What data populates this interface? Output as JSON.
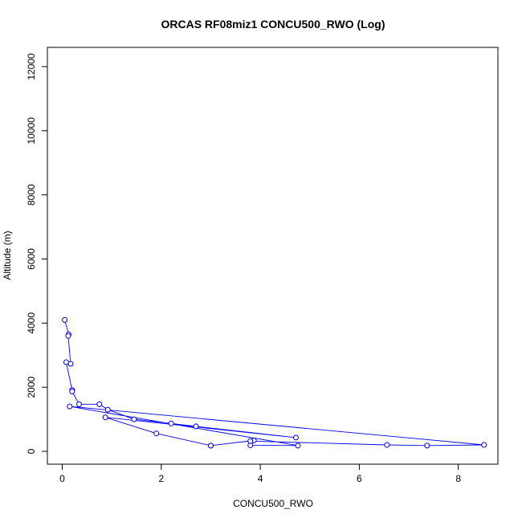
{
  "chart_data": {
    "type": "line",
    "title": "ORCAS RF08miz1 CONCU500_RWO (Log)",
    "xlabel": "CONCU500_RWO",
    "ylabel": "Altitude (m)",
    "xlim": [
      -0.3,
      8.8
    ],
    "ylim": [
      -400,
      12600
    ],
    "xticks": [
      0,
      2,
      4,
      6,
      8
    ],
    "yticks": [
      0,
      2000,
      4000,
      6000,
      8000,
      10000,
      12000
    ],
    "grid": false,
    "legend": "none",
    "color": "#0000ff",
    "series": [
      {
        "x": [
          0.05,
          0.13,
          0.12,
          0.17,
          0.08,
          0.2,
          0.2,
          0.34,
          0.75,
          0.92,
          1.45,
          2.2,
          2.7,
          4.72,
          0.87,
          1.9,
          3.0,
          3.0,
          3.87,
          3.8,
          4.76,
          0.15,
          8.52,
          7.37,
          6.56,
          3.8
        ],
        "y": [
          4100,
          3650,
          3600,
          2730,
          2780,
          1910,
          1870,
          1470,
          1470,
          1300,
          1000,
          870,
          780,
          430,
          1060,
          560,
          180,
          180,
          340,
          190,
          180,
          1400,
          200,
          180,
          200,
          320
        ]
      }
    ]
  }
}
